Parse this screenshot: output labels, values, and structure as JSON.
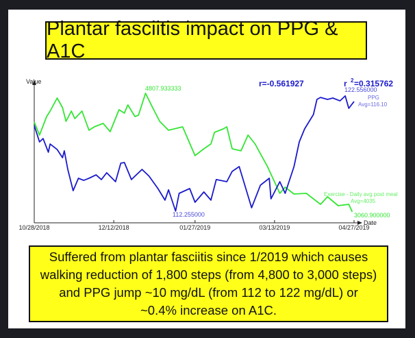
{
  "title": "Plantar fasciitis impact on PPG & A1C",
  "note": "Suffered from plantar fasciitis since 1/2019 which causes walking reduction of 1,800 steps (from 4,800 to 3,000 steps) and PPG jump ~10 mg/dL (from 112 to 122 mg/dL) or ~0.4% increase on A1C.",
  "chart_data": {
    "type": "line",
    "title": "",
    "xlabel": "Date",
    "ylabel": "Value",
    "x_unit": "days since 10/28/2018",
    "xlim": [
      0,
      181
    ],
    "x_ticks": [
      {
        "day": 0,
        "label": "10/28/2018"
      },
      {
        "day": 45,
        "label": "12/12/2018"
      },
      {
        "day": 91,
        "label": "01/27/2019"
      },
      {
        "day": 136,
        "label": "03/13/2019"
      },
      {
        "day": 181,
        "label": "04/27/2019"
      }
    ],
    "stats": {
      "r": "r=-0.561927",
      "r2_prefix": "r",
      "r2_sup": "2",
      "r2_value": "=0.315762"
    },
    "series": [
      {
        "name": "Exercise - Daily avg post meal",
        "avg_label": "Avg=4035",
        "color": "#33e633",
        "max_label": "4807.933333",
        "min_label": "3060.900000",
        "ylim": [
          3060.9,
          4807.93
        ],
        "x": [
          0,
          3,
          7,
          9,
          13,
          16,
          18,
          21,
          23,
          27,
          31,
          34,
          39,
          43,
          48,
          51,
          53,
          57,
          59,
          63,
          67,
          71,
          76,
          84,
          91,
          96,
          100,
          102,
          107,
          109,
          112,
          117,
          121,
          125,
          132,
          139,
          142,
          147,
          154,
          162,
          166,
          172,
          178,
          180
        ],
        "y": [
          4384,
          4192,
          4465,
          4545,
          4737,
          4596,
          4394,
          4545,
          4434,
          4545,
          4263,
          4313,
          4364,
          4242,
          4566,
          4515,
          4636,
          4465,
          4485,
          4808,
          4596,
          4394,
          4263,
          4313,
          3889,
          3990,
          4061,
          4232,
          4283,
          4313,
          3990,
          3960,
          4192,
          4061,
          3727,
          3334,
          3424,
          3323,
          3334,
          3172,
          3283,
          3152,
          3172,
          3061
        ]
      },
      {
        "name": "PPG",
        "avg_label": "Avg=116.10",
        "color": "#1a1acc",
        "max_label": "122.556000",
        "min_label": "112.255000",
        "ylim": [
          112.255,
          122.556
        ],
        "x": [
          0,
          3,
          5,
          8,
          9,
          13,
          16,
          17,
          19,
          22,
          25,
          28,
          31,
          35,
          38,
          41,
          46,
          49,
          51,
          55,
          61,
          65,
          70,
          74,
          76,
          80,
          82,
          88,
          91,
          96,
          100,
          103,
          109,
          112,
          116,
          123,
          128,
          133,
          134,
          139,
          142,
          147,
          150,
          153,
          158,
          160,
          162,
          166,
          169,
          173,
          176,
          178,
          181
        ],
        "y": [
          119.92,
          118.45,
          118.75,
          117.53,
          118.26,
          117.77,
          117.04,
          117.65,
          115.99,
          114.09,
          115.2,
          115.01,
          115.2,
          115.5,
          115.08,
          115.69,
          114.89,
          116.55,
          116.61,
          115.08,
          115.99,
          115.38,
          114.28,
          113.24,
          114.16,
          112.26,
          113.85,
          114.28,
          113.05,
          113.97,
          113.24,
          115.08,
          114.89,
          115.81,
          116.24,
          112.56,
          114.58,
          115.2,
          113.36,
          114.89,
          113.85,
          116.24,
          118.45,
          119.61,
          120.9,
          122.25,
          122.43,
          122.25,
          122.37,
          122.12,
          122.56,
          121.45,
          122.06
        ]
      }
    ]
  }
}
